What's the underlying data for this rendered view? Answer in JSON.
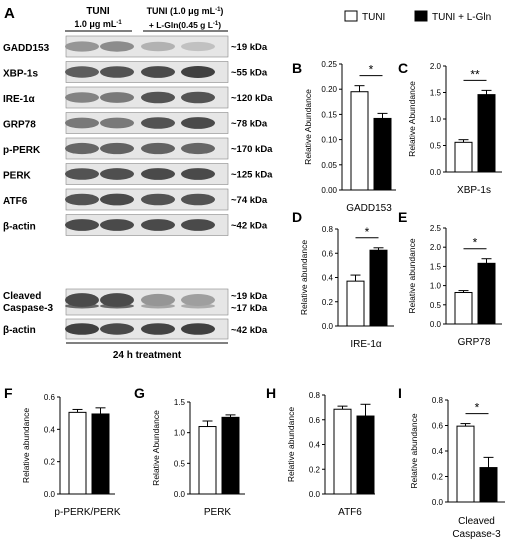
{
  "figure": {
    "panel_labels": [
      "A",
      "B",
      "C",
      "D",
      "E",
      "F",
      "G",
      "H",
      "I"
    ],
    "legend": {
      "entries": [
        {
          "name": "TUNI",
          "fill": "#ffffff"
        },
        {
          "name": "TUNI + L-Gln",
          "fill": "#000000"
        }
      ]
    }
  },
  "blot": {
    "col1_title": "TUNI",
    "col1_conc": "1.0 μg mL⁻¹)",
    "col1_conc_prefix": "1.0 μg mL",
    "col1_conc_sup": "-1",
    "col2_title": "TUNI (1.0 μg mL",
    "col2_title_sup": "-1",
    "col2_title_end": ")",
    "col2_conc": "+ L-Gln(0.45 g L",
    "col2_conc_sup": "-1",
    "col2_conc_end": ")",
    "footer": "24 h treatment",
    "rows": [
      {
        "label": "GADD153",
        "kda": "~19 kDa",
        "intensity": [
          0.45,
          0.5,
          0.3,
          0.22
        ]
      },
      {
        "label": "XBP-1s",
        "kda": "~55 kDa",
        "intensity": [
          0.75,
          0.8,
          0.85,
          0.9
        ]
      },
      {
        "label": "IRE-1α",
        "kda": "~120 kDa",
        "intensity": [
          0.55,
          0.6,
          0.8,
          0.8
        ]
      },
      {
        "label": "GRP78",
        "kda": "~78 kDa",
        "intensity": [
          0.6,
          0.6,
          0.8,
          0.85
        ]
      },
      {
        "label": "p-PERK",
        "kda": "~170 kDa",
        "intensity": [
          0.7,
          0.72,
          0.72,
          0.7
        ]
      },
      {
        "label": "PERK",
        "kda": "~125 kDa",
        "intensity": [
          0.8,
          0.82,
          0.85,
          0.85
        ]
      },
      {
        "label": "ATF6",
        "kda": "~74 kDa",
        "intensity": [
          0.8,
          0.85,
          0.8,
          0.8
        ]
      },
      {
        "label": "β-actin",
        "kda": "~42 kDa",
        "intensity": [
          0.85,
          0.85,
          0.85,
          0.85
        ]
      }
    ],
    "caspase": {
      "label_line1": "Cleaved",
      "label_line2": "Caspase-3",
      "kda1": "~19 kDa",
      "kda2": "~17 kDa",
      "intensity": [
        0.85,
        0.85,
        0.45,
        0.4
      ]
    },
    "actin2": {
      "label": "β-actin",
      "kda": "~42 kDa",
      "intensity": [
        0.9,
        0.85,
        0.88,
        0.9
      ]
    }
  },
  "chart_data": [
    {
      "panel": "B",
      "type": "bar",
      "categories": [
        "GADD153"
      ],
      "ylabel": "Relative Abundance",
      "ylim": [
        0,
        0.25
      ],
      "yticks": [
        "0.00",
        "0.05",
        "0.10",
        "0.15",
        "0.20",
        "0.25"
      ],
      "series": [
        {
          "name": "TUNI",
          "values": [
            0.195
          ],
          "errors": [
            0.012
          ]
        },
        {
          "name": "TUNI + L-Gln",
          "values": [
            0.142
          ],
          "errors": [
            0.01
          ]
        }
      ],
      "significance": "*"
    },
    {
      "panel": "C",
      "type": "bar",
      "categories": [
        "XBP-1s"
      ],
      "ylabel": "Relative Abundance",
      "ylim": [
        0,
        2.0
      ],
      "yticks": [
        "0.0",
        "0.5",
        "1.0",
        "1.5",
        "2.0"
      ],
      "series": [
        {
          "name": "TUNI",
          "values": [
            0.56
          ],
          "errors": [
            0.05
          ]
        },
        {
          "name": "TUNI + L-Gln",
          "values": [
            1.46
          ],
          "errors": [
            0.08
          ]
        }
      ],
      "significance": "**"
    },
    {
      "panel": "D",
      "type": "bar",
      "categories": [
        "IRE-1α"
      ],
      "ylabel": "Relative abundance",
      "ylim": [
        0,
        0.8
      ],
      "yticks": [
        "0.0",
        "0.2",
        "0.4",
        "0.6",
        "0.8"
      ],
      "series": [
        {
          "name": "TUNI",
          "values": [
            0.37
          ],
          "errors": [
            0.05
          ]
        },
        {
          "name": "TUNI + L-Gln",
          "values": [
            0.625
          ],
          "errors": [
            0.02
          ]
        }
      ],
      "significance": "*"
    },
    {
      "panel": "E",
      "type": "bar",
      "categories": [
        "GRP78"
      ],
      "ylabel": "Relative abundance",
      "ylim": [
        0,
        2.5
      ],
      "yticks": [
        "0.0",
        "0.5",
        "1.0",
        "1.5",
        "2.0",
        "2.5"
      ],
      "series": [
        {
          "name": "TUNI",
          "values": [
            0.82
          ],
          "errors": [
            0.05
          ]
        },
        {
          "name": "TUNI + L-Gln",
          "values": [
            1.58
          ],
          "errors": [
            0.12
          ]
        }
      ],
      "significance": "*"
    },
    {
      "panel": "F",
      "type": "bar",
      "categories": [
        "p-PERK/PERK"
      ],
      "ylabel": "Relative abundance",
      "ylim": [
        0,
        0.6
      ],
      "yticks": [
        "0.0",
        "0.2",
        "0.4",
        "0.6"
      ],
      "series": [
        {
          "name": "TUNI",
          "values": [
            0.505
          ],
          "errors": [
            0.018
          ]
        },
        {
          "name": "TUNI + L-Gln",
          "values": [
            0.495
          ],
          "errors": [
            0.038
          ]
        }
      ],
      "significance": ""
    },
    {
      "panel": "G",
      "type": "bar",
      "categories": [
        "PERK"
      ],
      "ylabel": "Relative Abundance",
      "ylim": [
        0,
        1.5
      ],
      "yticks": [
        "0.0",
        "0.5",
        "1.0",
        "1.5"
      ],
      "series": [
        {
          "name": "TUNI",
          "values": [
            1.1
          ],
          "errors": [
            0.09
          ]
        },
        {
          "name": "TUNI + L-Gln",
          "values": [
            1.25
          ],
          "errors": [
            0.04
          ]
        }
      ],
      "significance": ""
    },
    {
      "panel": "H",
      "type": "bar",
      "categories": [
        "ATF6"
      ],
      "ylabel": "Relative abundance",
      "ylim": [
        0,
        0.8
      ],
      "yticks": [
        "0.0",
        "0.2",
        "0.4",
        "0.6",
        "0.8"
      ],
      "series": [
        {
          "name": "TUNI",
          "values": [
            0.685
          ],
          "errors": [
            0.025
          ]
        },
        {
          "name": "TUNI + L-Gln",
          "values": [
            0.63
          ],
          "errors": [
            0.095
          ]
        }
      ],
      "significance": ""
    },
    {
      "panel": "I",
      "type": "bar",
      "categories": [
        "Cleaved Caspase-3"
      ],
      "ylabel": "Relative abundance",
      "ylim": [
        0,
        0.8
      ],
      "yticks": [
        "0.0",
        "0.2",
        "0.4",
        "0.6",
        "0.8"
      ],
      "xlabel_lines": [
        "Cleaved",
        "Caspase-3"
      ],
      "series": [
        {
          "name": "TUNI",
          "values": [
            0.595
          ],
          "errors": [
            0.02
          ]
        },
        {
          "name": "TUNI + L-Gln",
          "values": [
            0.27
          ],
          "errors": [
            0.08
          ]
        }
      ],
      "significance": "*"
    }
  ]
}
